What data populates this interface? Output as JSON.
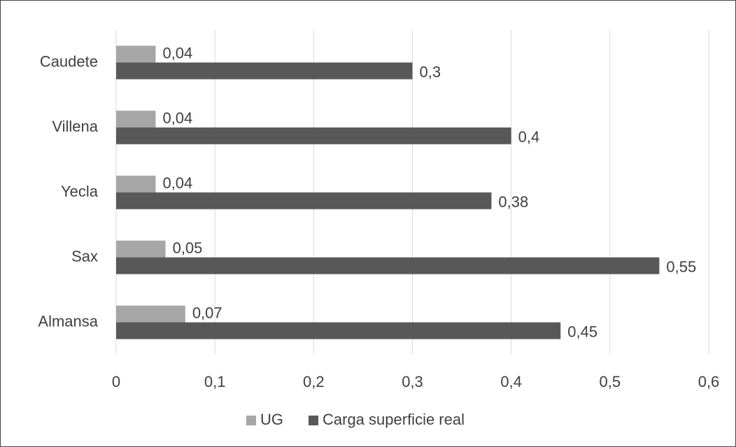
{
  "chart_data": {
    "type": "barh",
    "categories": [
      "Caudete",
      "Villena",
      "Yecla",
      "Sax",
      "Almansa"
    ],
    "series": [
      {
        "name": "UG",
        "color": "#a6a6a6",
        "values": [
          0.04,
          0.04,
          0.04,
          0.05,
          0.07
        ],
        "value_labels": [
          "0,04",
          "0,04",
          "0,04",
          "0,05",
          "0,07"
        ]
      },
      {
        "name": "Carga superficie real",
        "color": "#585858",
        "values": [
          0.3,
          0.4,
          0.38,
          0.55,
          0.45
        ],
        "value_labels": [
          "0,3",
          "0,4",
          "0,38",
          "0,55",
          "0,45"
        ]
      }
    ],
    "xlim": [
      0,
      0.6
    ],
    "xticks": [
      0,
      {
        "value": 0.1,
        "label": "0,1"
      },
      {
        "value": 0.2,
        "label": "0,2"
      },
      {
        "value": 0.3,
        "label": "0,3"
      },
      {
        "value": 0.4,
        "label": "0,4"
      },
      {
        "value": 0.5,
        "label": "0,5"
      },
      {
        "value": 0.6,
        "label": "0,6"
      }
    ],
    "grid": true,
    "legend": "bottom"
  }
}
